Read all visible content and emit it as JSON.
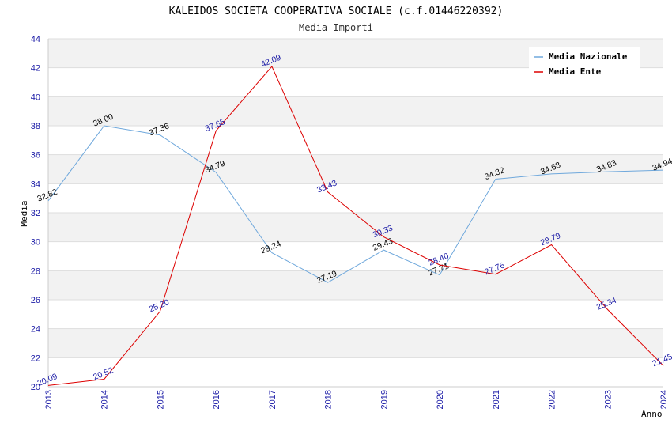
{
  "chart_data": {
    "type": "line",
    "title": "KALEIDOS SOCIETA COOPERATIVA SOCIALE (c.f.01446220392)",
    "subtitle": "Media Importi",
    "xlabel": "Anno",
    "ylabel": "Media",
    "ylim": [
      20,
      44
    ],
    "yticks": [
      20,
      22,
      24,
      26,
      28,
      30,
      32,
      34,
      36,
      38,
      40,
      42,
      44
    ],
    "x": [
      "2013",
      "2014",
      "2015",
      "2016",
      "2017",
      "2018",
      "2019",
      "2020",
      "2021",
      "2022",
      "2023",
      "2024"
    ],
    "grid": "horizontal alternating bands",
    "legend_position": "top-right",
    "series": [
      {
        "name": "Media Nazionale",
        "color": "#6fa8dc",
        "label_color": "#000000",
        "values": [
          32.82,
          38.0,
          37.36,
          34.79,
          29.24,
          27.19,
          29.43,
          27.71,
          34.32,
          34.68,
          34.83,
          34.94
        ],
        "labels": [
          "32.82",
          "38.00",
          "37.36",
          "34.79",
          "29.24",
          "27.19",
          "29.43",
          "27.71",
          "34.32",
          "34.68",
          "34.83",
          "34.94"
        ]
      },
      {
        "name": "Media Ente",
        "color": "#dd0000",
        "label_color": "#1a1aa6",
        "values": [
          20.09,
          20.52,
          25.2,
          37.65,
          42.09,
          33.43,
          30.33,
          28.4,
          27.76,
          29.79,
          25.34,
          21.45
        ],
        "labels": [
          "20.09",
          "20.52",
          "25.20",
          "37.65",
          "42.09",
          "33.43",
          "30.33",
          "28.40",
          "27.76",
          "29.79",
          "25.34",
          "21.45"
        ]
      }
    ]
  }
}
